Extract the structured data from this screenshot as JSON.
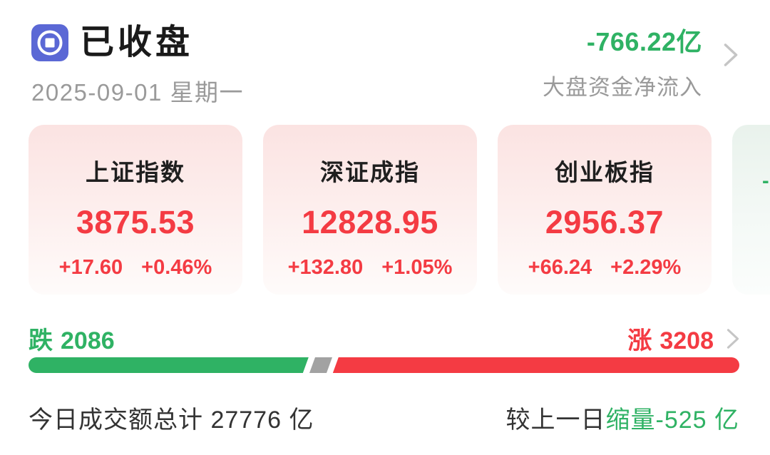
{
  "header": {
    "status_title": "已收盘",
    "date": "2025-09-01 星期一",
    "net_inflow_value": "-766.22亿",
    "net_inflow_label": "大盘资金净流入"
  },
  "icons": {
    "market_status_icon": "coin-badge",
    "nav_chevron": "chevron-right"
  },
  "indices": [
    {
      "name": "上证指数",
      "value": "3875.53",
      "change": "+17.60",
      "change_pct": "+0.46%",
      "trend": "up"
    },
    {
      "name": "深证成指",
      "value": "12828.95",
      "change": "+132.80",
      "change_pct": "+1.05%",
      "trend": "up"
    },
    {
      "name": "创业板指",
      "value": "2956.37",
      "change": "+66.24",
      "change_pct": "+2.29%",
      "trend": "up"
    },
    {
      "name": "",
      "value": "",
      "change": "-",
      "change_pct": "",
      "trend": "down"
    }
  ],
  "breadth": {
    "decline_label": "跌",
    "decline_count": 2086,
    "advance_label": "涨",
    "advance_count": 3208
  },
  "turnover": {
    "today_text": "今日成交额总计 27776 亿",
    "compare_label": "较上一日",
    "compare_value": "缩量-525 亿"
  },
  "colors": {
    "up_red": "#f43b43",
    "down_green": "#2fb264",
    "icon_indigo": "#5b68d5",
    "bar_gray": "#a2a2a2",
    "muted_gray": "#9a9a9a"
  }
}
